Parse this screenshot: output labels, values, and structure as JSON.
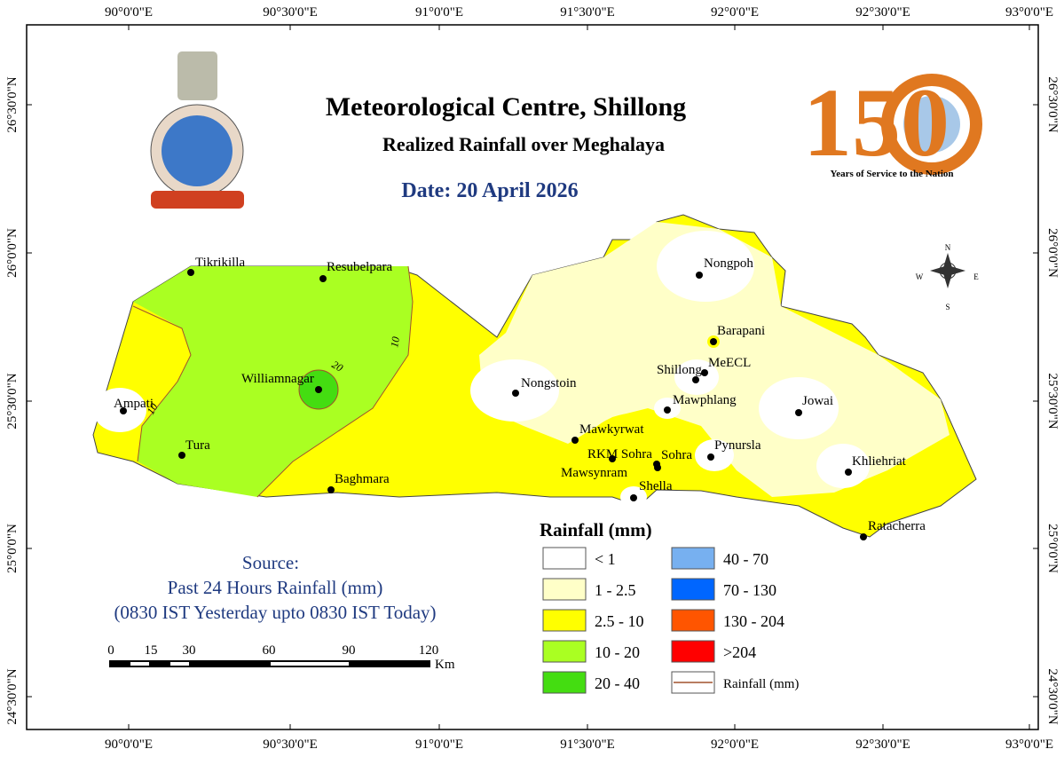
{
  "header": {
    "title": "Meteorological Centre, Shillong",
    "subtitle": "Realized Rainfall over Meghalaya",
    "date": "Date: 20 April 2026"
  },
  "logo150": {
    "number": "150",
    "tagline": "Years of Service to the Nation"
  },
  "graticule": {
    "longitudes": [
      "90°0'0\"E",
      "90°30'0\"E",
      "91°0'0\"E",
      "91°30'0\"E",
      "92°0'0\"E",
      "92°30'0\"E",
      "93°0'0\"E"
    ],
    "latitudes": [
      "26°30'0\"N",
      "26°0'0\"N",
      "25°30'0\"N",
      "25°0'0\"N",
      "24°30'0\"N"
    ]
  },
  "stations": [
    "Tikrikilla",
    "Resubelpara",
    "Ampati",
    "Williamnagar",
    "Tura",
    "Baghmara",
    "Nongstoin",
    "Mawkyrwat",
    "RKM Sohra",
    "Mawsynram",
    "Sohra",
    "Shella",
    "Nongpoh",
    "Barapani",
    "Shillong",
    "MeECL",
    "Mawphlang",
    "Pynursla",
    "Jowai",
    "Khliehriat",
    "Ratacherra"
  ],
  "contours": [
    "10",
    "20",
    "10"
  ],
  "compass": {
    "n": "N",
    "s": "S",
    "e": "E",
    "w": "W"
  },
  "legend": {
    "title": "Rainfall (mm)",
    "items": [
      {
        "label": "< 1",
        "color": "#ffffff"
      },
      {
        "label": "1 - 2.5",
        "color": "#ffffc8"
      },
      {
        "label": "2.5 - 10",
        "color": "#ffff00"
      },
      {
        "label": "10 - 20",
        "color": "#aaff22"
      },
      {
        "label": "20 - 40",
        "color": "#44dd11"
      },
      {
        "label": "40 - 70",
        "color": "#77b0f0"
      },
      {
        "label": "70 - 130",
        "color": "#0066ff"
      },
      {
        "label": "130 - 204",
        "color": "#ff5500"
      },
      {
        "label": ">204",
        "color": "#ff0000"
      }
    ],
    "line_label": "Rainfall (mm)"
  },
  "source": {
    "title": "Source:",
    "lines": [
      "Past 24 Hours Rainfall (mm)",
      "(0830 IST Yesterday upto 0830 IST Today)"
    ]
  },
  "scale": {
    "ticks": [
      "0",
      "15",
      "30",
      "60",
      "90",
      "120"
    ],
    "unit": "Km"
  }
}
